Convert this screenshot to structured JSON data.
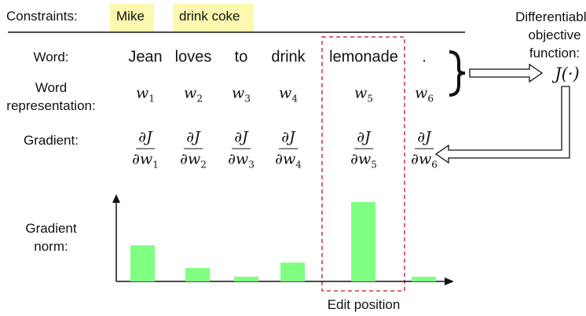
{
  "constraints": {
    "label": "Constraints:",
    "items": [
      "Mike",
      "drink coke"
    ]
  },
  "objective": {
    "label": [
      "Differentiable",
      "objective",
      "function:"
    ],
    "symbol": "J(·)"
  },
  "rows": {
    "word_label": "Word:",
    "rep_label": [
      "Word",
      "representation:"
    ],
    "grad_label": "Gradient:",
    "norm_label": [
      "Gradient",
      "norm:"
    ]
  },
  "words": [
    "Jean",
    "loves",
    "to",
    "drink",
    "lemonade",
    "."
  ],
  "reps": [
    "1",
    "2",
    "3",
    "4",
    "5",
    "6"
  ],
  "gradient": {
    "numerator": "∂J",
    "den_prefix": "∂w"
  },
  "chart_data": {
    "type": "bar",
    "categories": [
      "Jean",
      "loves",
      "to",
      "drink",
      "lemonade",
      "."
    ],
    "values": [
      46,
      17,
      6,
      24,
      101,
      6
    ],
    "ylabel": "Gradient norm",
    "ylim": [
      0,
      110
    ]
  },
  "edit": {
    "label": "Edit position",
    "index": 4
  },
  "colors": {
    "bar": "#80ff80",
    "highlight": "#fdf8b0",
    "edit_box": "#c0102a"
  }
}
